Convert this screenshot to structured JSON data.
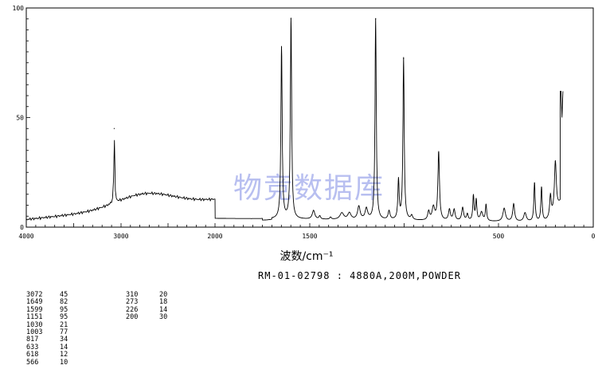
{
  "chart_data": {
    "type": "line",
    "xlabel": "波数/cm⁻¹",
    "xlim": [
      4000,
      0
    ],
    "ylim": [
      0,
      100
    ],
    "x_ticks": [
      4000,
      3000,
      2000,
      1500,
      500,
      0
    ],
    "x_tick_labels": [
      "4000",
      "3000",
      "2000",
      "1500",
      "500",
      "0"
    ],
    "y_ticks": [
      0,
      50,
      100
    ],
    "y_tick_labels": [
      "0",
      "50",
      "100"
    ],
    "watermark": "物竞数据库",
    "sample_id": "RM-01-02798 : 4880A,200M,POWDER",
    "peaks": [
      {
        "x": 3072,
        "y": 45
      },
      {
        "x": 1649,
        "y": 82
      },
      {
        "x": 1599,
        "y": 95
      },
      {
        "x": 1151,
        "y": 95
      },
      {
        "x": 1030,
        "y": 21
      },
      {
        "x": 1003,
        "y": 77
      },
      {
        "x": 817,
        "y": 34
      },
      {
        "x": 633,
        "y": 14
      },
      {
        "x": 618,
        "y": 12
      },
      {
        "x": 566,
        "y": 10
      },
      {
        "x": 310,
        "y": 20
      },
      {
        "x": 273,
        "y": 18
      },
      {
        "x": 226,
        "y": 14
      },
      {
        "x": 200,
        "y": 30
      }
    ],
    "peak_table_left": [
      [
        "3072",
        "45"
      ],
      [
        "1649",
        "82"
      ],
      [
        "1599",
        "95"
      ],
      [
        "1151",
        "95"
      ],
      [
        "1030",
        "21"
      ],
      [
        "1003",
        "77"
      ],
      [
        "817",
        "34"
      ],
      [
        "633",
        "14"
      ],
      [
        "618",
        "12"
      ],
      [
        "566",
        "10"
      ]
    ],
    "peak_table_right": [
      [
        "310",
        "20"
      ],
      [
        "273",
        "18"
      ],
      [
        "226",
        "14"
      ],
      [
        "200",
        "30"
      ]
    ],
    "grid": false
  }
}
